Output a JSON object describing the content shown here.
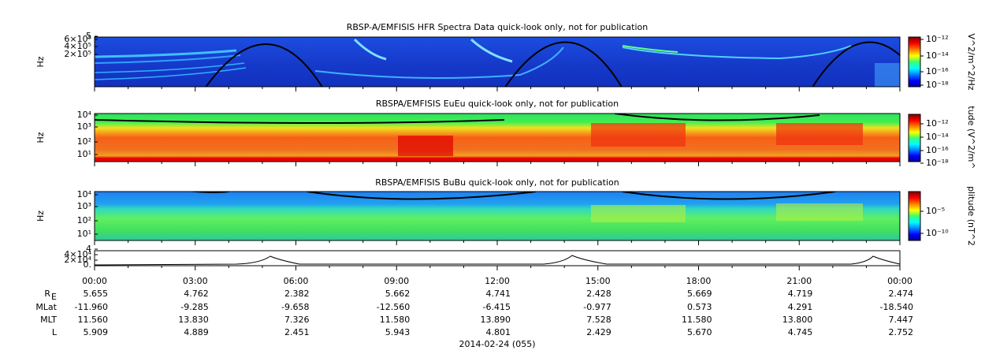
{
  "panels": [
    {
      "title": "RBSP-A/EMFISIS  HFR Spectra Data quick-look only, not for publication",
      "ylabel": "Hz",
      "yticks": [
        "5",
        "6×10⁵",
        "4×10⁵",
        "2×10⁵"
      ],
      "colorbar_ticks": [
        "10⁻¹²",
        "10⁻¹⁴",
        "10⁻¹⁶",
        "10⁻¹⁸"
      ],
      "colorbar_label": "V^2/m^2/Hz"
    },
    {
      "title": "RBSPA/EMFISIS  EuEu quick-look only, not for publication",
      "ylabel": "Hz",
      "yticks": [
        "10⁴",
        "10³",
        "10²",
        "10¹"
      ],
      "colorbar_ticks": [
        "10⁻¹²",
        "10⁻¹⁴",
        "10⁻¹⁶",
        "10⁻¹⁸"
      ],
      "colorbar_label": "tude (V^2/m^"
    },
    {
      "title": "RBSPA/EMFISIS  BuBu quick-look only, not for publication",
      "ylabel": "Hz",
      "yticks": [
        "10⁴",
        "10³",
        "10²",
        "10¹"
      ],
      "colorbar_ticks": [
        "10⁻⁵",
        "10⁻¹⁰"
      ],
      "colorbar_label": "plitude (nT^2"
    },
    {
      "yticks": [
        "4",
        "4×10⁴",
        "2×10⁴",
        "0."
      ]
    }
  ],
  "xticks": [
    "00:00",
    "03:00",
    "06:00",
    "09:00",
    "12:00",
    "15:00",
    "18:00",
    "21:00",
    "00:00"
  ],
  "ephemeris": {
    "label_subscript": "E",
    "labels": [
      "R",
      "MLat",
      "MLT",
      "L"
    ],
    "rows": [
      [
        "5.655",
        "4.762",
        "2.382",
        "5.662",
        "4.741",
        "2.428",
        "5.669",
        "4.719",
        "2.474"
      ],
      [
        "-11.960",
        "-9.285",
        "-9.658",
        "-12.560",
        "-6.415",
        "-0.977",
        "0.573",
        "4.291",
        "-18.540"
      ],
      [
        "11.560",
        "13.830",
        "7.326",
        "11.580",
        "13.890",
        "7.528",
        "11.580",
        "13.800",
        "7.447"
      ],
      [
        "5.909",
        "4.889",
        "2.451",
        "5.943",
        "4.801",
        "2.429",
        "5.670",
        "4.745",
        "2.752"
      ]
    ]
  },
  "date": "2014-02-24 (055)"
}
